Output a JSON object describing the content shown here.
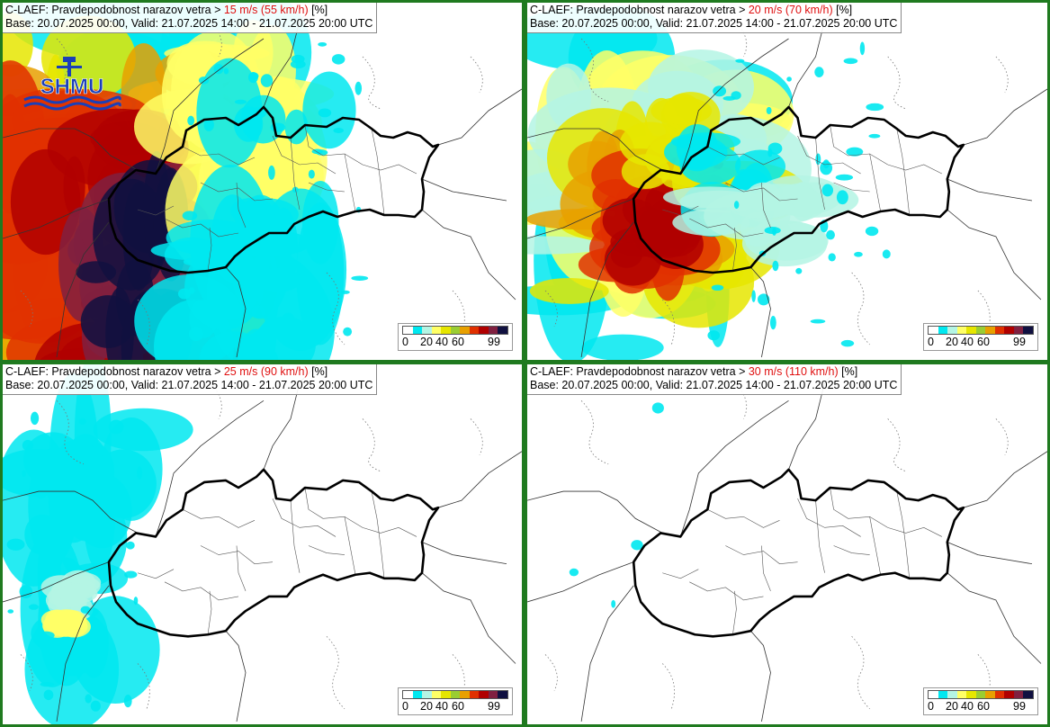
{
  "panels": [
    {
      "prefix": "C-LAEF: Pravdepodobnost narazov vetra > ",
      "threshold": "15 m/s (55 km/h)",
      "suffix": " [%]",
      "base_valid": "Base: 20.07.2025 00:00, Valid: 21.07.2025 14:00 - 21.07.2025 20:00 UTC",
      "intensity": 4
    },
    {
      "prefix": "C-LAEF: Pravdepodobnost narazov vetra > ",
      "threshold": "20 m/s (70 km/h)",
      "suffix": " [%]",
      "base_valid": "Base: 20.07.2025 00:00, Valid: 21.07.2025 14:00 - 21.07.2025 20:00 UTC",
      "intensity": 3
    },
    {
      "prefix": "C-LAEF: Pravdepodobnost narazov vetra > ",
      "threshold": "25 m/s (90 km/h)",
      "suffix": " [%]",
      "base_valid": "Base: 20.07.2025 00:00, Valid: 21.07.2025 14:00 - 21.07.2025 20:00 UTC",
      "intensity": 1
    },
    {
      "prefix": "C-LAEF: Pravdepodobnost narazov vetra > ",
      "threshold": "30 m/s (110 km/h)",
      "suffix": " [%]",
      "base_valid": "Base: 20.07.2025 00:00, Valid: 21.07.2025 14:00 - 21.07.2025 20:00 UTC",
      "intensity": 0
    }
  ],
  "legend": {
    "ticks": [
      "0",
      "20",
      "40",
      "60",
      "99"
    ],
    "colors": [
      "#ffffff",
      "#00e8f0",
      "#b4f5e4",
      "#ffff66",
      "#e6e600",
      "#9acd32",
      "#e8a000",
      "#e03000",
      "#b00000",
      "#802040",
      "#101040"
    ]
  },
  "logo": {
    "text": "SHMU",
    "color": "#1a3fb8"
  },
  "colors": {
    "frame": "#1f7a1f",
    "threshold": "#e01010",
    "border": "#000000"
  }
}
